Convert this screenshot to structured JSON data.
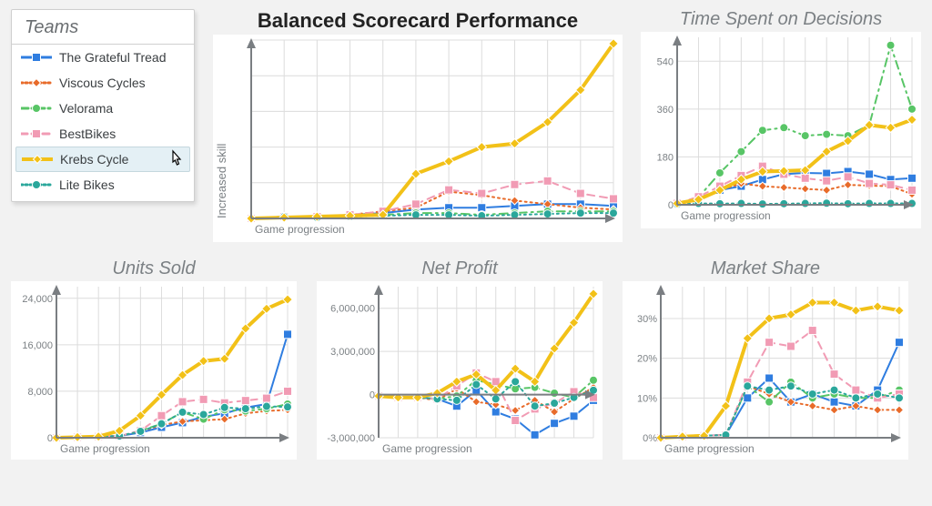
{
  "legend": {
    "title": "Teams",
    "items": [
      {
        "name": "The Grateful Tread",
        "color": "#2f7de0",
        "style": "solid",
        "marker": "square",
        "selected": false
      },
      {
        "name": "Viscous Cycles",
        "color": "#e86b2a",
        "style": "dotted",
        "marker": "diamond",
        "selected": false
      },
      {
        "name": "Velorama",
        "color": "#58c566",
        "style": "dashdot",
        "marker": "circle",
        "selected": false
      },
      {
        "name": "BestBikes",
        "color": "#f19bb4",
        "style": "dashed",
        "marker": "square",
        "selected": false
      },
      {
        "name": "Krebs Cycle",
        "color": "#f2c118",
        "style": "solid",
        "marker": "diamond",
        "selected": true,
        "width": 4
      },
      {
        "name": "Lite Bikes",
        "color": "#2aa79b",
        "style": "dotted",
        "marker": "circle",
        "selected": false
      }
    ],
    "selected_index": 4
  },
  "charts": {
    "balanced_scorecard": {
      "title": "Balanced Scorecard Performance",
      "xlabel": "Game progression",
      "ylabel": "Increased skill",
      "xlim": [
        0,
        11
      ],
      "ylim": [
        0,
        10
      ],
      "yticks": [
        0,
        2,
        4,
        6,
        8,
        10
      ],
      "xticks": [
        0,
        1,
        2,
        3,
        4,
        5,
        6,
        7,
        8,
        9,
        10,
        11
      ],
      "series": {
        "The Grateful Tread": [
          0,
          0.1,
          0.1,
          0.2,
          0.3,
          0.5,
          0.6,
          0.6,
          0.7,
          0.8,
          0.8,
          0.7
        ],
        "Viscous Cycles": [
          0,
          0.1,
          0.1,
          0.2,
          0.4,
          0.6,
          1.5,
          1.3,
          1.0,
          0.8,
          0.6,
          0.5
        ],
        "Velorama": [
          0,
          0.1,
          0.1,
          0.1,
          0.2,
          0.3,
          0.3,
          0.2,
          0.3,
          0.4,
          0.4,
          0.4
        ],
        "BestBikes": [
          0,
          0.1,
          0.1,
          0.2,
          0.4,
          0.8,
          1.6,
          1.4,
          1.9,
          2.1,
          1.4,
          1.1
        ],
        "Lite Bikes": [
          0,
          0.1,
          0.05,
          0.1,
          0.15,
          0.2,
          0.2,
          0.15,
          0.2,
          0.25,
          0.3,
          0.3
        ],
        "Krebs Cycle": [
          0,
          0.05,
          0.1,
          0.15,
          0.2,
          2.5,
          3.2,
          4.0,
          4.2,
          5.4,
          7.2,
          9.8
        ]
      }
    },
    "time_spent": {
      "title": "Time Spent on Decisions",
      "xlabel": "Game progression",
      "xlim": [
        0,
        11
      ],
      "ylim": [
        0,
        630
      ],
      "ytick_values": [
        0,
        180,
        360,
        540
      ],
      "xticks": [
        0,
        1,
        2,
        3,
        4,
        5,
        6,
        7,
        8,
        9,
        10,
        11
      ],
      "series": {
        "The Grateful Tread": [
          5,
          25,
          55,
          70,
          95,
          115,
          120,
          118,
          125,
          115,
          95,
          100
        ],
        "Viscous Cycles": [
          5,
          20,
          55,
          80,
          70,
          65,
          60,
          55,
          75,
          72,
          70,
          40
        ],
        "Velorama": [
          5,
          28,
          120,
          200,
          280,
          290,
          260,
          265,
          260,
          300,
          600,
          360
        ],
        "BestBikes": [
          5,
          30,
          70,
          110,
          145,
          115,
          100,
          90,
          105,
          80,
          75,
          55
        ],
        "Lite Bikes": [
          2,
          5,
          4,
          5,
          3,
          4,
          5,
          6,
          4,
          5,
          5,
          5
        ],
        "Krebs Cycle": [
          5,
          20,
          55,
          95,
          125,
          127,
          130,
          200,
          240,
          300,
          290,
          320
        ]
      }
    },
    "units_sold": {
      "title": "Units Sold",
      "xlabel": "Game progression",
      "xlim": [
        0,
        11
      ],
      "ylim": [
        0,
        26000
      ],
      "ytick_values": [
        0,
        8000,
        16000,
        24000
      ],
      "ytick_labels": [
        "0",
        "8,000",
        "16,000",
        "24,000"
      ],
      "xticks": [
        0,
        1,
        2,
        3,
        4,
        5,
        6,
        7,
        8,
        9,
        10,
        11
      ],
      "series": {
        "The Grateful Tread": [
          0,
          100,
          200,
          300,
          900,
          1800,
          2600,
          3600,
          4200,
          5200,
          5800,
          17800
        ],
        "Viscous Cycles": [
          0,
          100,
          200,
          300,
          1100,
          2200,
          2800,
          3000,
          3200,
          4200,
          4600,
          4800
        ],
        "Velorama": [
          0,
          100,
          200,
          300,
          1200,
          2400,
          4400,
          3200,
          4800,
          4600,
          5000,
          5800
        ],
        "BestBikes": [
          0,
          100,
          200,
          300,
          1200,
          3800,
          6200,
          6600,
          6000,
          6400,
          6800,
          8000
        ],
        "Lite Bikes": [
          0,
          100,
          200,
          300,
          1100,
          2400,
          4400,
          4000,
          5200,
          5000,
          5400,
          5300
        ],
        "Krebs Cycle": [
          0,
          100,
          200,
          1200,
          3800,
          7400,
          10800,
          13200,
          13600,
          18800,
          22200,
          23800
        ]
      }
    },
    "net_profit": {
      "title": "Net Profit",
      "xlabel": "Game progression",
      "xlim": [
        0,
        11
      ],
      "ylim": [
        -3000000,
        7500000
      ],
      "ytick_values": [
        -3000000,
        0,
        3000000,
        6000000
      ],
      "ytick_labels": [
        "-3,000,000",
        "0",
        "3,000,000",
        "6,000,000"
      ],
      "xticks": [
        0,
        1,
        2,
        3,
        4,
        5,
        6,
        7,
        8,
        9,
        10,
        11
      ],
      "series": {
        "The Grateful Tread": [
          -100000,
          -200000,
          -200000,
          -300000,
          -800000,
          300000,
          -1200000,
          -1700000,
          -2800000,
          -2000000,
          -1500000,
          -400000
        ],
        "Viscous Cycles": [
          -100000,
          -200000,
          -200000,
          -400000,
          400000,
          -500000,
          -700000,
          -1100000,
          -400000,
          -1200000,
          -300000,
          500000
        ],
        "Velorama": [
          -100000,
          -200000,
          -200000,
          -300000,
          -100000,
          1000000,
          700000,
          400000,
          500000,
          100000,
          -200000,
          1000000
        ],
        "BestBikes": [
          -100000,
          -200000,
          -200000,
          -300000,
          600000,
          1500000,
          900000,
          -1800000,
          -1000000,
          -600000,
          200000,
          -200000
        ],
        "Lite Bikes": [
          -100000,
          -200000,
          -200000,
          -300000,
          -400000,
          700000,
          -300000,
          900000,
          -800000,
          -600000,
          -200000,
          300000
        ],
        "Krebs Cycle": [
          -100000,
          -200000,
          -200000,
          100000,
          900000,
          1400000,
          300000,
          1800000,
          900000,
          3200000,
          5000000,
          7000000
        ]
      }
    },
    "market_share": {
      "title": "Market Share",
      "xlabel": "Game progression",
      "xlim": [
        0,
        11
      ],
      "ylim": [
        0,
        38
      ],
      "ytick_values": [
        0,
        10,
        20,
        30
      ],
      "ytick_labels": [
        "0%",
        "10%",
        "20%",
        "30%"
      ],
      "xticks": [
        0,
        1,
        2,
        3,
        4,
        5,
        6,
        7,
        8,
        9,
        10,
        11
      ],
      "series": {
        "The Grateful Tread": [
          0,
          0.3,
          0.5,
          0.7,
          10,
          15,
          9,
          11,
          9,
          8,
          12,
          24
        ],
        "Viscous Cycles": [
          0,
          0.3,
          0.5,
          0.7,
          13,
          11,
          9,
          8,
          7,
          8,
          7,
          7
        ],
        "Velorama": [
          0,
          0.3,
          0.5,
          0.7,
          13,
          9,
          14,
          10,
          11,
          10,
          10,
          12
        ],
        "BestBikes": [
          0,
          0.3,
          0.5,
          0.7,
          14,
          24,
          23,
          27,
          16,
          12,
          10,
          11
        ],
        "Lite Bikes": [
          0,
          0.3,
          0.5,
          0.7,
          13,
          12,
          13,
          11,
          12,
          10,
          11,
          10
        ],
        "Krebs Cycle": [
          0,
          0.3,
          0.5,
          8,
          25,
          30,
          31,
          34,
          34,
          32,
          33,
          32
        ]
      }
    }
  },
  "styles": {
    "line_width_default": 2,
    "line_width_selected": 4,
    "marker_size": 4.5,
    "grid_color": "#dcdcdc",
    "axis_color": "#7a7e82",
    "chart_bg": "#ffffff",
    "body_bg": "#f2f2f2",
    "title_color_main": "#222222",
    "title_color_sub": "#7b8084"
  }
}
